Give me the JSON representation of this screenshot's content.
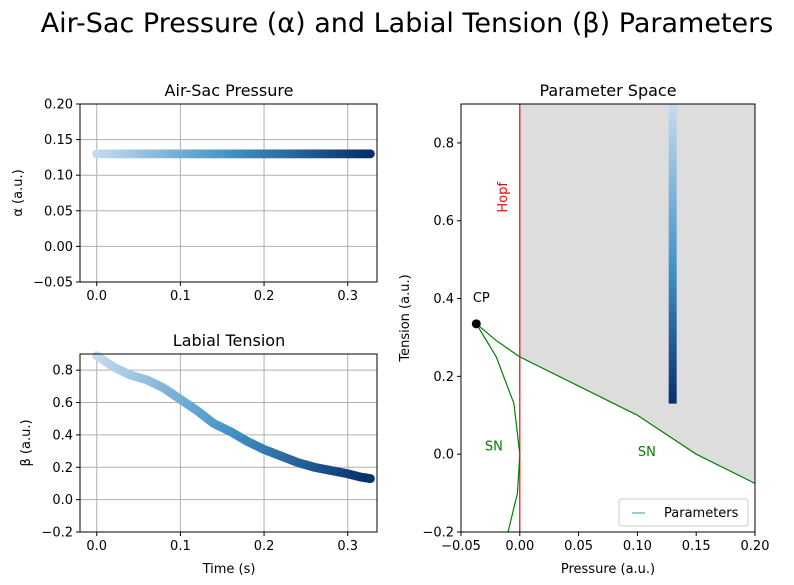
{
  "figure": {
    "suptitle": "Air-Sac Pressure (α) and Labial Tension (β) Parameters"
  },
  "colors": {
    "grid": "#b0b0b0",
    "hopf": "#ff0000",
    "sn": "#008000",
    "region": "#dddddd",
    "cmap_light": "#c6dbef",
    "cmap_mid": "#4292c6",
    "cmap_dark": "#08306b"
  },
  "chart_data": [
    {
      "type": "scatter",
      "title": "Air-Sac Pressure",
      "xlabel": "",
      "ylabel": "α (a.u.)",
      "xlim": [
        -0.02,
        0.335
      ],
      "ylim": [
        -0.05,
        0.2
      ],
      "xticks": [
        "0.0",
        "0.1",
        "0.2",
        "0.3"
      ],
      "yticks": [
        "−0.05",
        "0.00",
        "0.05",
        "0.10",
        "0.15",
        "0.20"
      ],
      "grid": true,
      "x_range": [
        0.0,
        0.327
      ],
      "series": [
        {
          "values": [
            [
              0.0,
              0.13
            ],
            [
              0.1,
              0.13
            ],
            [
              0.2,
              0.13
            ],
            [
              0.327,
              0.13
            ]
          ]
        }
      ]
    },
    {
      "type": "scatter",
      "title": "Labial Tension",
      "xlabel": "Time (s)",
      "ylabel": "β (a.u.)",
      "xlim": [
        -0.02,
        0.335
      ],
      "ylim": [
        -0.2,
        0.9
      ],
      "xticks": [
        "0.0",
        "0.1",
        "0.2",
        "0.3"
      ],
      "yticks": [
        "−0.2",
        "0.0",
        "0.2",
        "0.4",
        "0.6",
        "0.8"
      ],
      "grid": true,
      "series": [
        {
          "values": [
            [
              0.0,
              0.89
            ],
            [
              0.02,
              0.82
            ],
            [
              0.04,
              0.77
            ],
            [
              0.06,
              0.74
            ],
            [
              0.08,
              0.69
            ],
            [
              0.1,
              0.62
            ],
            [
              0.12,
              0.55
            ],
            [
              0.14,
              0.47
            ],
            [
              0.16,
              0.42
            ],
            [
              0.18,
              0.36
            ],
            [
              0.2,
              0.31
            ],
            [
              0.22,
              0.27
            ],
            [
              0.24,
              0.23
            ],
            [
              0.26,
              0.2
            ],
            [
              0.28,
              0.18
            ],
            [
              0.3,
              0.16
            ],
            [
              0.315,
              0.14
            ],
            [
              0.327,
              0.13
            ]
          ]
        }
      ]
    },
    {
      "type": "line",
      "title": "Parameter Space",
      "xlabel": "Pressure (a.u.)",
      "ylabel": "Tension (a.u.)",
      "xlim": [
        -0.05,
        0.2
      ],
      "ylim": [
        -0.2,
        0.9
      ],
      "xticks": [
        "−0.05",
        "0.00",
        "0.05",
        "0.10",
        "0.15",
        "0.20"
      ],
      "yticks": [
        "−0.2",
        "0.0",
        "0.2",
        "0.4",
        "0.6",
        "0.8"
      ],
      "grid": false,
      "legend": {
        "position": "lower-right",
        "entries": [
          "Parameters"
        ]
      },
      "annotations": {
        "hopf": "Hopf",
        "cp": "CP",
        "sn_left": "SN",
        "sn_right": "SN"
      },
      "hopf_x": 0.0,
      "cusp_point": [
        -0.037,
        0.335
      ],
      "sn_upper": [
        [
          -0.037,
          0.335
        ],
        [
          -0.02,
          0.292
        ],
        [
          0.0,
          0.25
        ],
        [
          0.05,
          0.175
        ],
        [
          0.1,
          0.1
        ],
        [
          0.15,
          0.0
        ],
        [
          0.2,
          -0.075
        ]
      ],
      "sn_lower": [
        [
          -0.037,
          0.335
        ],
        [
          -0.02,
          0.25
        ],
        [
          -0.005,
          0.13
        ],
        [
          0.0,
          0.0
        ],
        [
          -0.002,
          -0.1
        ],
        [
          -0.01,
          -0.2
        ]
      ],
      "shaded_region": "between Hopf line and upper SN curve",
      "parameter_path": {
        "x": 0.13,
        "y_start": 0.9,
        "y_end": 0.13
      }
    }
  ]
}
